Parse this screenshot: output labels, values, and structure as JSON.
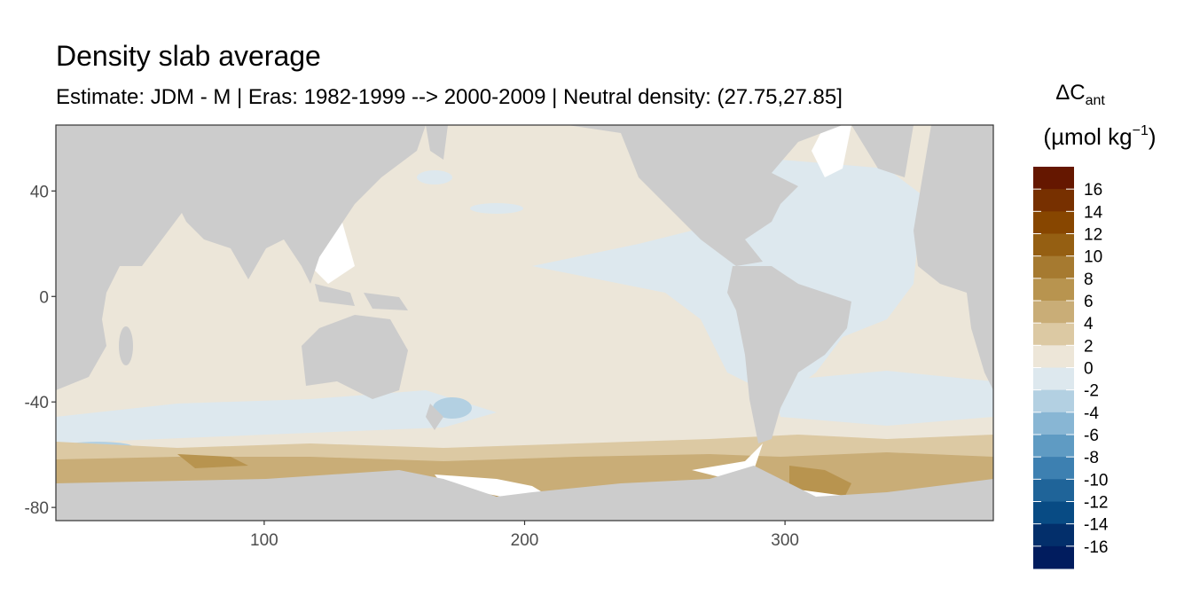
{
  "chart_data": {
    "type": "map",
    "title": "Density slab average",
    "subtitle": "Estimate: JDM - M | Eras: 1982-1999 --> 2000-2009 | Neutral density: (27.75,27.85]",
    "xlim": [
      20,
      380
    ],
    "ylim": [
      -85,
      65
    ],
    "xticks": [
      100,
      200,
      300
    ],
    "yticks": [
      -80,
      -40,
      0,
      40
    ],
    "land_color": "#cccccc",
    "legend": {
      "title": "ΔC",
      "title_sub": "ant",
      "unit": "(µmol kg",
      "unit_sup": "−1",
      "unit_end": ")",
      "limits": [
        -18,
        18
      ],
      "breaks": [
        16,
        14,
        12,
        10,
        8,
        6,
        4,
        2,
        0,
        -2,
        -4,
        -6,
        -8,
        -10,
        -12,
        -14,
        -16
      ],
      "colors": [
        "#651700",
        "#773000",
        "#874600",
        "#955f12",
        "#a67a30",
        "#b8944f",
        "#c9ad77",
        "#dcc9a3",
        "#ede6d8",
        "#dde8ee",
        "#b3d0e2",
        "#88b6d4",
        "#5f9bc3",
        "#3d80b1",
        "#1f6499",
        "#084b84",
        "#032f6b",
        "#011c5e"
      ]
    }
  }
}
